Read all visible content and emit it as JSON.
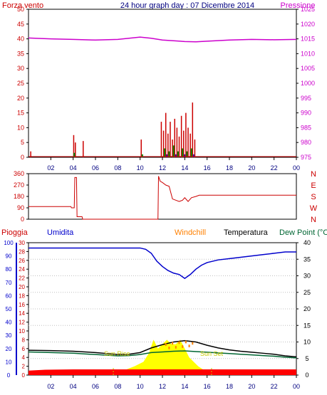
{
  "header": {
    "left_label": "Forza vento",
    "title": "24 hour graph day : 07 Dicembre 2014",
    "right_label": "Pressione"
  },
  "labels": {
    "pioggia": "Pioggia",
    "umidita": "Umidita",
    "windchill": "Windchill",
    "temperatura": "Temperatura",
    "dewpoint": "Dew Point (°C",
    "sun_rise": "Sun Rise",
    "sun_set": "Sun Set"
  },
  "colors": {
    "wind": "#cc0000",
    "pressure": "#cc00cc",
    "direction": "#cc0000",
    "humidity": "#0000cc",
    "temperature": "#000000",
    "dewpoint": "#006633",
    "windchill": "#ff8000",
    "solar": "#ffff00",
    "rain": "#ff0000",
    "frame": "#000000",
    "grid": "#c0c0c0",
    "wind_label": "#cc0000",
    "pressure_label": "#cc00cc",
    "title": "#000080",
    "rain_label": "#cc0000",
    "humidity_label": "#0000cc",
    "windchill_label": "#ff8000",
    "temperature_label": "#000000",
    "dewpoint_label": "#006633",
    "solar_label": "#c8c800"
  },
  "chart_data": [
    {
      "type": "line",
      "name": "wind-pressure",
      "x_ticks": [
        "02",
        "04",
        "06",
        "08",
        "10",
        "12",
        "14",
        "16",
        "18",
        "20",
        "22",
        "00"
      ],
      "xlim": [
        0,
        24
      ],
      "left_axis": {
        "label": "Forza vento",
        "ylim": [
          0,
          50
        ],
        "ticks": [
          0,
          5,
          10,
          15,
          20,
          25,
          30,
          35,
          40,
          45,
          50
        ]
      },
      "right_axis": {
        "label": "Pressione",
        "ylim": [
          975,
          1025
        ],
        "ticks": [
          975,
          980,
          985,
          990,
          995,
          1000,
          1005,
          1010,
          1015,
          1020,
          1025
        ]
      },
      "pressure": [
        [
          0,
          1015.3
        ],
        [
          2,
          1015.0
        ],
        [
          4,
          1014.8
        ],
        [
          6,
          1014.6
        ],
        [
          8,
          1014.8
        ],
        [
          10,
          1015.6
        ],
        [
          11,
          1015.2
        ],
        [
          12,
          1014.6
        ],
        [
          14,
          1014.1
        ],
        [
          15,
          1014.0
        ],
        [
          16,
          1014.2
        ],
        [
          18,
          1014.6
        ],
        [
          20,
          1014.8
        ],
        [
          22,
          1014.7
        ],
        [
          24,
          1014.8
        ]
      ],
      "wind_gust_bars": [
        [
          0.2,
          2
        ],
        [
          4.05,
          7.5
        ],
        [
          4.2,
          5
        ],
        [
          4.9,
          5.5
        ],
        [
          10.1,
          6
        ],
        [
          11.9,
          12
        ],
        [
          12.1,
          9
        ],
        [
          12.3,
          15
        ],
        [
          12.5,
          8
        ],
        [
          12.7,
          12
        ],
        [
          12.9,
          6
        ],
        [
          13.1,
          13
        ],
        [
          13.3,
          10
        ],
        [
          13.5,
          7
        ],
        [
          13.7,
          14
        ],
        [
          13.9,
          9
        ],
        [
          14.1,
          15
        ],
        [
          14.3,
          10
        ],
        [
          14.5,
          8
        ],
        [
          14.7,
          18.5
        ],
        [
          14.9,
          6
        ]
      ],
      "wind_avg_bars": [
        [
          4.1,
          1.5
        ],
        [
          10.2,
          1
        ],
        [
          12.2,
          3
        ],
        [
          12.6,
          2
        ],
        [
          13.0,
          4
        ],
        [
          13.4,
          2
        ],
        [
          13.8,
          3
        ],
        [
          14.2,
          2
        ],
        [
          14.6,
          3
        ]
      ],
      "wind_lull_bars": [
        [
          12.4,
          1
        ],
        [
          13.2,
          1
        ],
        [
          14.0,
          1
        ],
        [
          14.8,
          1
        ]
      ]
    },
    {
      "type": "line",
      "name": "wind-direction",
      "left_axis": {
        "ticks": [
          0,
          90,
          180,
          270,
          360
        ],
        "ylim": [
          0,
          360
        ]
      },
      "right_axis": {
        "ticks": [
          "N",
          "W",
          "S",
          "E",
          "N"
        ]
      },
      "xlim": [
        0,
        24
      ],
      "values": [
        [
          0,
          100
        ],
        [
          3.8,
          100
        ],
        [
          3.85,
          90
        ],
        [
          4.1,
          90
        ],
        [
          4.15,
          330
        ],
        [
          4.3,
          330
        ],
        [
          4.35,
          20
        ],
        [
          4.8,
          20
        ],
        [
          4.85,
          0
        ],
        [
          11.2,
          0
        ],
        [
          11.25,
          0
        ],
        [
          11.6,
          0
        ],
        [
          11.65,
          340
        ],
        [
          11.8,
          300
        ],
        [
          12.0,
          290
        ],
        [
          12.3,
          270
        ],
        [
          12.6,
          260
        ],
        [
          12.9,
          160
        ],
        [
          13.2,
          150
        ],
        [
          13.5,
          140
        ],
        [
          13.8,
          150
        ],
        [
          14.0,
          170
        ],
        [
          14.3,
          140
        ],
        [
          14.6,
          170
        ],
        [
          15.0,
          180
        ],
        [
          15.3,
          190
        ],
        [
          24,
          190
        ]
      ]
    },
    {
      "type": "line",
      "name": "rain-humidity-temperature",
      "x_ticks": [
        "02",
        "04",
        "06",
        "08",
        "10",
        "12",
        "14",
        "16",
        "18",
        "20",
        "22",
        "00"
      ],
      "xlim": [
        0,
        24
      ],
      "humidity_axis": {
        "ylim": [
          0,
          100
        ],
        "ticks": [
          0,
          10,
          20,
          30,
          40,
          50,
          60,
          70,
          80,
          90,
          100
        ]
      },
      "rain_axis": {
        "ylim": [
          0,
          30
        ],
        "ticks": [
          0,
          2,
          4,
          6,
          8,
          10,
          12,
          14,
          16,
          18,
          20,
          22,
          24,
          26,
          28,
          30
        ]
      },
      "temp_axis": {
        "ylim": [
          0,
          40
        ],
        "ticks": [
          0,
          5,
          10,
          15,
          20,
          25,
          30,
          35,
          40
        ]
      },
      "humidity": [
        [
          0,
          96
        ],
        [
          2,
          96
        ],
        [
          4,
          96
        ],
        [
          6,
          96
        ],
        [
          8,
          96
        ],
        [
          9,
          96
        ],
        [
          10,
          96
        ],
        [
          10.5,
          95
        ],
        [
          11,
          92
        ],
        [
          11.5,
          86
        ],
        [
          12,
          82
        ],
        [
          12.5,
          79
        ],
        [
          13,
          77
        ],
        [
          13.5,
          76
        ],
        [
          14,
          73
        ],
        [
          14.5,
          76
        ],
        [
          15,
          80
        ],
        [
          15.5,
          83
        ],
        [
          16,
          85
        ],
        [
          17,
          87
        ],
        [
          18,
          88
        ],
        [
          19,
          89
        ],
        [
          20,
          90
        ],
        [
          21,
          91
        ],
        [
          22,
          92
        ],
        [
          23,
          93
        ],
        [
          24,
          93
        ]
      ],
      "temperature": [
        [
          0,
          7.5
        ],
        [
          2,
          7.4
        ],
        [
          4,
          7.2
        ],
        [
          6,
          6.8
        ],
        [
          8,
          6.2
        ],
        [
          9,
          6.3
        ],
        [
          10,
          6.8
        ],
        [
          11,
          8.2
        ],
        [
          12,
          9.2
        ],
        [
          13,
          10.0
        ],
        [
          14,
          10.4
        ],
        [
          15,
          10.0
        ],
        [
          16,
          9.0
        ],
        [
          17,
          8.2
        ],
        [
          18,
          7.6
        ],
        [
          19,
          7.2
        ],
        [
          20,
          6.9
        ],
        [
          21,
          6.6
        ],
        [
          22,
          6.3
        ],
        [
          23,
          5.8
        ],
        [
          24,
          5.5
        ]
      ],
      "dewpoint": [
        [
          0,
          7.0
        ],
        [
          2,
          6.8
        ],
        [
          4,
          6.6
        ],
        [
          6,
          6.2
        ],
        [
          8,
          5.8
        ],
        [
          9,
          5.9
        ],
        [
          10,
          6.2
        ],
        [
          11,
          6.8
        ],
        [
          12,
          7.0
        ],
        [
          13,
          7.2
        ],
        [
          14,
          7.3
        ],
        [
          15,
          7.1
        ],
        [
          16,
          6.9
        ],
        [
          17,
          6.7
        ],
        [
          18,
          6.5
        ],
        [
          19,
          6.3
        ],
        [
          20,
          6.1
        ],
        [
          21,
          5.9
        ],
        [
          22,
          5.7
        ],
        [
          23,
          5.4
        ],
        [
          24,
          5.2
        ]
      ],
      "windchill": [
        [
          12.3,
          8.8
        ],
        [
          12.6,
          7.8
        ],
        [
          12.9,
          9.2
        ],
        [
          13.2,
          8.0
        ],
        [
          13.5,
          9.4
        ],
        [
          13.8,
          8.2
        ],
        [
          14.1,
          9.6
        ],
        [
          14.4,
          8.4
        ],
        [
          14.7,
          9.2
        ]
      ],
      "solar_rain_scale": [
        [
          7.8,
          0
        ],
        [
          8.5,
          1
        ],
        [
          9.5,
          2
        ],
        [
          10.3,
          3
        ],
        [
          10.8,
          5
        ],
        [
          11.2,
          8
        ],
        [
          11.6,
          6
        ],
        [
          12.0,
          7
        ],
        [
          12.4,
          8
        ],
        [
          12.8,
          7
        ],
        [
          13.2,
          7
        ],
        [
          13.6,
          8
        ],
        [
          14.0,
          6
        ],
        [
          14.4,
          4
        ],
        [
          14.8,
          3
        ],
        [
          15.2,
          2
        ],
        [
          15.8,
          1
        ],
        [
          16.5,
          0
        ]
      ],
      "rain_total": [
        [
          0,
          1
        ],
        [
          1.5,
          1.2
        ],
        [
          4,
          1.3
        ],
        [
          24,
          1.3
        ]
      ],
      "sun_rise_hour": 7.6,
      "sun_set_hour": 16.4
    }
  ]
}
